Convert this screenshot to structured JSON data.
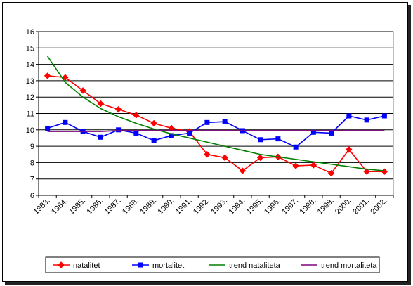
{
  "chart_data": {
    "type": "line",
    "categories": [
      "1983.",
      "1984.",
      "1985.",
      "1986.",
      "1987.",
      "1988.",
      "1989.",
      "1990.",
      "1991.",
      "1992.",
      "1993.",
      "1994.",
      "1995.",
      "1996.",
      "1997.",
      "1998.",
      "1999.",
      "2000.",
      "2001.",
      "2002."
    ],
    "ylim": [
      6,
      16
    ],
    "yticks": [
      6,
      7,
      8,
      9,
      10,
      11,
      12,
      13,
      14,
      15,
      16
    ],
    "grid": "horizontal",
    "legend_position": "bottom",
    "series": [
      {
        "name": "natalitet",
        "color": "#ff0000",
        "marker": "diamond",
        "values": [
          13.3,
          13.2,
          12.4,
          11.6,
          11.25,
          10.9,
          10.4,
          10.1,
          9.9,
          8.5,
          8.3,
          7.5,
          8.3,
          8.35,
          7.8,
          7.85,
          7.35,
          8.8,
          7.45,
          7.45
        ]
      },
      {
        "name": "mortalitet",
        "color": "#0000ff",
        "marker": "square",
        "values": [
          10.1,
          10.45,
          9.9,
          9.55,
          10.0,
          9.8,
          9.35,
          9.65,
          9.8,
          10.45,
          10.5,
          9.95,
          9.4,
          9.45,
          8.95,
          9.85,
          9.8,
          10.85,
          10.6,
          10.85
        ]
      },
      {
        "name": "trend nataliteta",
        "color": "#008000",
        "marker": "none",
        "values": [
          14.5,
          12.9,
          12.0,
          11.3,
          10.8,
          10.4,
          10.05,
          9.75,
          9.5,
          9.25,
          9.0,
          8.75,
          8.5,
          8.35,
          8.2,
          8.05,
          7.9,
          7.75,
          7.6,
          7.5
        ]
      },
      {
        "name": "trend mortaliteta",
        "color": "#800080",
        "marker": "none",
        "values": [
          9.9,
          9.9,
          9.9,
          9.9,
          9.95,
          9.95,
          9.95,
          9.95,
          9.95,
          9.95,
          9.95,
          9.95,
          9.95,
          9.95,
          9.95,
          9.95,
          9.95,
          9.95,
          9.95,
          9.95
        ]
      }
    ]
  }
}
